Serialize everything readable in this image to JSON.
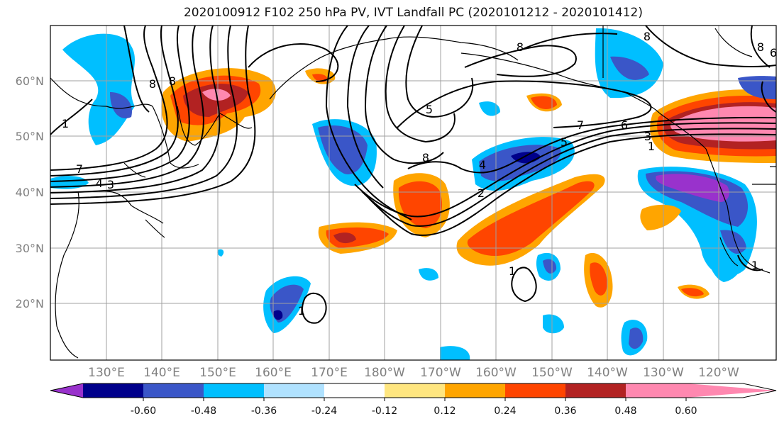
{
  "title": "2020100912 F102 250 hPa PV, IVT Landfall PC (2020101212 - 2020101412)",
  "lat_labels": [
    "60°N",
    "50°N",
    "40°N",
    "30°N",
    "20°N"
  ],
  "lon_labels": [
    "130°E",
    "140°E",
    "150°E",
    "160°E",
    "170°E",
    "180°W",
    "170°W",
    "160°W",
    "150°W",
    "140°W",
    "130°W",
    "120°W"
  ],
  "contour_labels": [
    "8",
    "8",
    "7",
    "1",
    "4",
    "3",
    "5",
    "8",
    "8",
    "7",
    "6",
    "5",
    "3",
    "1",
    "2",
    "4",
    "8",
    "1",
    "1",
    "1",
    "8",
    "6"
  ],
  "colorbar": {
    "colors": [
      "#9932CC",
      "#00008B",
      "#3A56C8",
      "#00BFFF",
      "#B0E2FF",
      "#FFFFFF",
      "#FFE680",
      "#FFA500",
      "#FF4500",
      "#B22222",
      "#FF88B0"
    ],
    "tick_labels": [
      "-0.60",
      "-0.48",
      "-0.36",
      "-0.24",
      "-0.12",
      "0.12",
      "0.24",
      "0.36",
      "0.48",
      "0.60"
    ]
  }
}
